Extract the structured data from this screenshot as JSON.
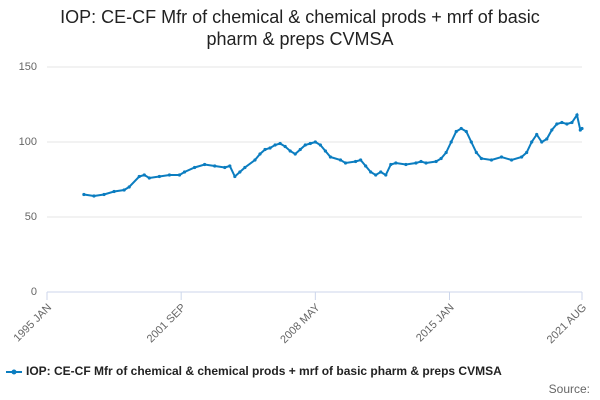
{
  "chart_data": {
    "type": "line",
    "title": "IOP: CE-CF Mfr of chemical & chemical prods + mrf of basic pharm & preps CVMSA",
    "source": "Source:",
    "x": [
      "1996 NOV",
      "1997 MAY",
      "1997 NOV",
      "1998 MAY",
      "1998 NOV",
      "1999 FEB",
      "1999 AUG",
      "1999 NOV",
      "2000 FEB",
      "2000 AUG",
      "2001 FEB",
      "2001 AUG",
      "2001 NOV",
      "2002 MAY",
      "2002 NOV",
      "2003 MAY",
      "2003 NOV",
      "2004 FEB",
      "2004 MAY",
      "2004 AUG",
      "2004 NOV",
      "2005 MAY",
      "2005 AUG",
      "2005 NOV",
      "2006 FEB",
      "2006 MAY",
      "2006 AUG",
      "2006 NOV",
      "2007 FEB",
      "2007 MAY",
      "2007 AUG",
      "2007 NOV",
      "2008 FEB",
      "2008 MAY",
      "2008 AUG",
      "2008 NOV",
      "2009 FEB",
      "2009 AUG",
      "2009 NOV",
      "2010 MAY",
      "2010 AUG",
      "2010 NOV",
      "2011 FEB",
      "2011 MAY",
      "2011 AUG",
      "2011 NOV",
      "2012 FEB",
      "2012 MAY",
      "2012 NOV",
      "2013 MAY",
      "2013 AUG",
      "2013 NOV",
      "2014 MAY",
      "2014 AUG",
      "2014 NOV",
      "2015 FEB",
      "2015 MAY",
      "2015 AUG",
      "2015 NOV",
      "2016 FEB",
      "2016 MAY",
      "2016 AUG",
      "2017 FEB",
      "2017 AUG",
      "2018 FEB",
      "2018 AUG",
      "2018 NOV",
      "2019 FEB",
      "2019 MAY",
      "2019 AUG",
      "2019 NOV",
      "2020 FEB",
      "2020 MAY",
      "2020 AUG",
      "2020 NOV",
      "2021 FEB",
      "2021 MAY",
      "2021 JUL",
      "2021 AUG"
    ],
    "series": [
      {
        "name": "IOP: CE-CF Mfr of chemical & chemical prods + mrf of basic pharm & preps CVMSA",
        "color": "#0b7dc0",
        "values": [
          65,
          64,
          65,
          67,
          68,
          70,
          77,
          78,
          76,
          77,
          78,
          78,
          80,
          83,
          85,
          84,
          83,
          84,
          77,
          80,
          83,
          88,
          92,
          95,
          96,
          98,
          99,
          97,
          94,
          92,
          95,
          98,
          99,
          100,
          98,
          94,
          90,
          88,
          86,
          87,
          88,
          84,
          80,
          78,
          80,
          78,
          85,
          86,
          85,
          86,
          87,
          86,
          87,
          89,
          93,
          100,
          107,
          109,
          107,
          100,
          93,
          89,
          88,
          90,
          88,
          90,
          93,
          100,
          105,
          100,
          102,
          108,
          112,
          113,
          112,
          113,
          118,
          108,
          109
        ]
      }
    ],
    "xlim": [
      "1995 JAN",
      "2021 AUG"
    ],
    "xticks": [
      "1995 JAN",
      "2001 SEP",
      "2008 MAY",
      "2015 JAN",
      "2021 AUG"
    ],
    "ylim": [
      0,
      150
    ],
    "yticks": [
      0,
      50,
      100,
      150
    ],
    "grid": true
  }
}
